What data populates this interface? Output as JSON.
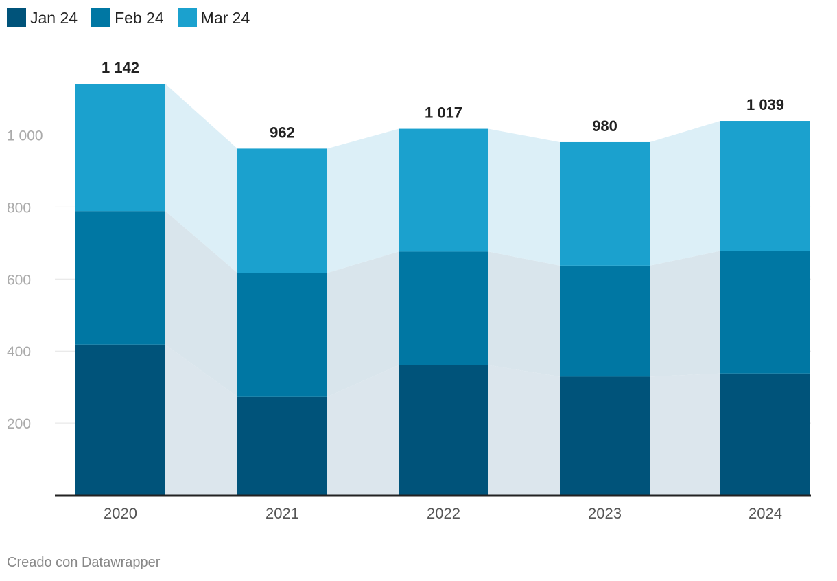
{
  "chart_data": {
    "type": "bar",
    "stacked": true,
    "categories": [
      "2020",
      "2021",
      "2022",
      "2023",
      "2024"
    ],
    "series": [
      {
        "name": "Jan 24",
        "color": "#00537A",
        "values": [
          418,
          273,
          361,
          329,
          338
        ]
      },
      {
        "name": "Feb 24",
        "color": "#0077A3",
        "values": [
          371,
          344,
          315,
          308,
          340
        ]
      },
      {
        "name": "Mar 24",
        "color": "#1BA1CE",
        "values": [
          353,
          345,
          341,
          343,
          361
        ]
      }
    ],
    "totals": [
      1142,
      962,
      1017,
      980,
      1039
    ],
    "total_labels": [
      "1 142",
      "962",
      "1 017",
      "980",
      "1 039"
    ],
    "y_ticks": [
      200,
      400,
      600,
      800,
      1000
    ],
    "y_tick_labels": [
      "200",
      "400",
      "600",
      "800",
      "1 000"
    ],
    "ylim": [
      0,
      1142
    ],
    "connector_colors": [
      "#DCE6ED",
      "#D9E5EC",
      "#DCEFF7"
    ],
    "legend_position": "top-left",
    "gridlines": true
  },
  "footer": {
    "credit": "Creado con Datawrapper"
  }
}
